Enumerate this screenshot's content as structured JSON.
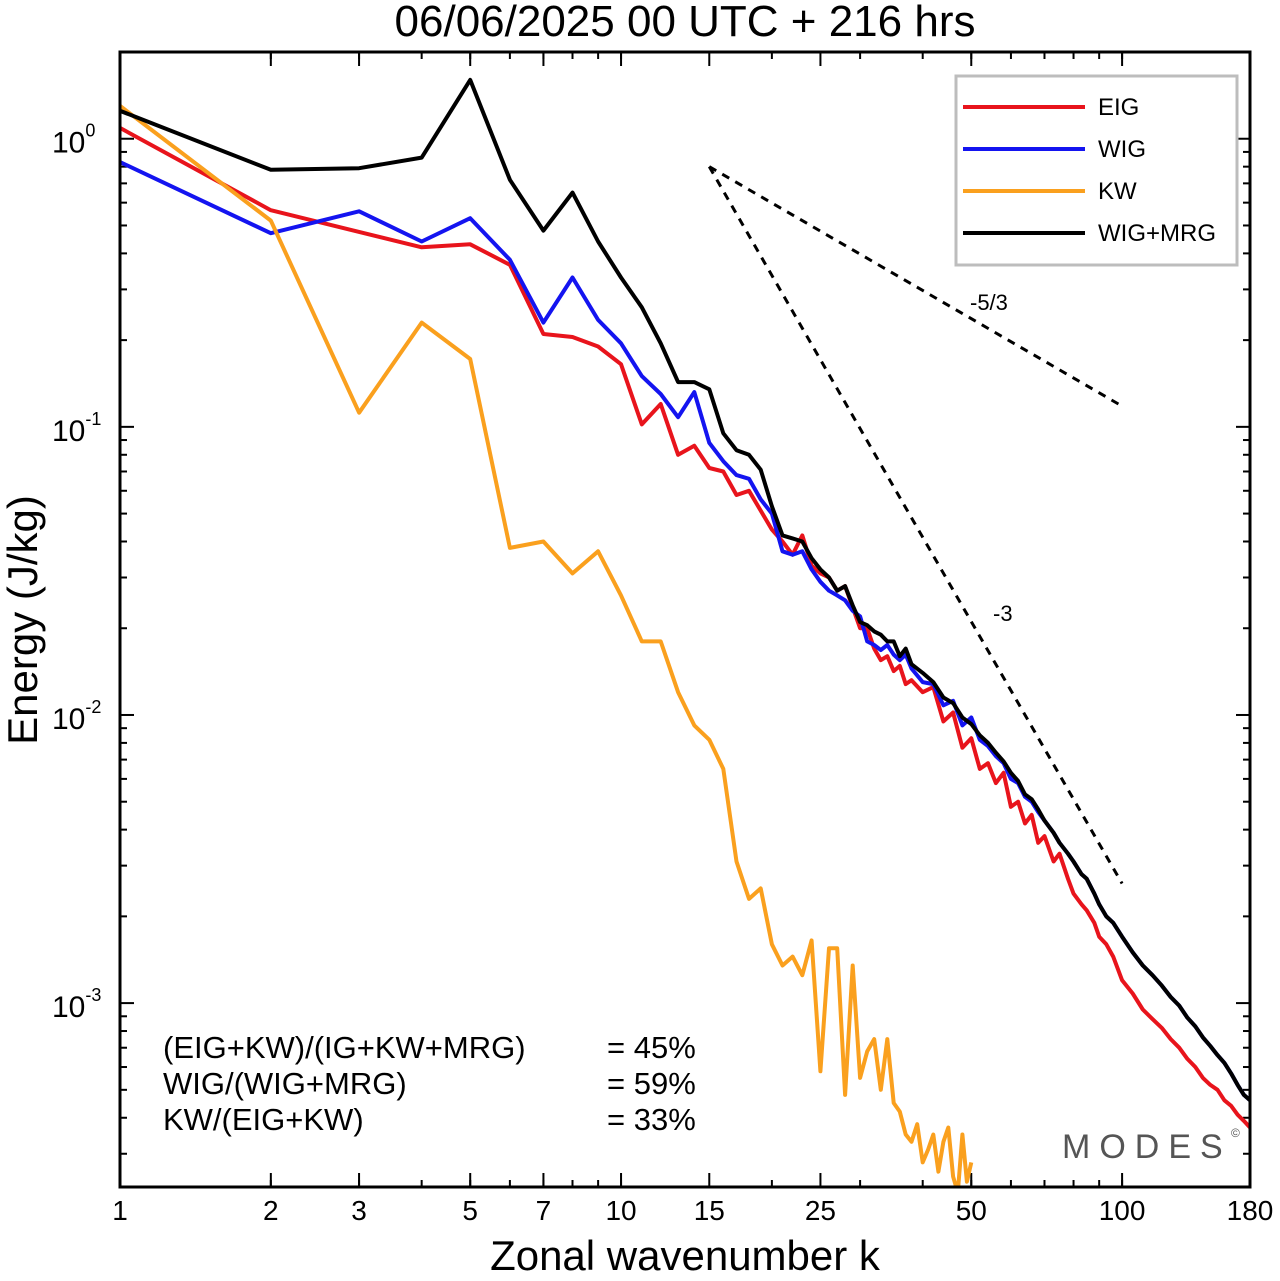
{
  "chart_data": {
    "type": "line",
    "title": "06/06/2025  00 UTC  + 216 hrs",
    "xlabel": "Zonal wavenumber k",
    "ylabel": "Energy (J/kg)",
    "xscale": "log",
    "yscale": "log",
    "xlim": [
      1,
      180
    ],
    "ylim": [
      0.00023,
      2.0
    ],
    "grid": false,
    "legend_position": "top-right",
    "x_ticks": [
      1,
      2,
      3,
      5,
      7,
      10,
      15,
      25,
      50,
      100,
      180
    ],
    "x_tick_labels": [
      "1",
      "2",
      "3",
      "5",
      "7",
      "10",
      "15",
      "25",
      "50",
      "100",
      "180"
    ],
    "y_ticks": [
      {
        "value": 1,
        "base": "10",
        "exp": "0"
      },
      {
        "value": 0.1,
        "base": "10",
        "exp": "-1"
      },
      {
        "value": 0.01,
        "base": "10",
        "exp": "-2"
      },
      {
        "value": 0.001,
        "base": "10",
        "exp": "-3"
      }
    ],
    "series": [
      {
        "name": "EIG",
        "color": "#e8141c",
        "points": [
          [
            1,
            1.09
          ],
          [
            2,
            0.565
          ],
          [
            3,
            0.475
          ],
          [
            4,
            0.42
          ],
          [
            5,
            0.43
          ],
          [
            6,
            0.365
          ],
          [
            7,
            0.21
          ],
          [
            8,
            0.205
          ],
          [
            9,
            0.19
          ],
          [
            10,
            0.165
          ],
          [
            11,
            0.102
          ],
          [
            12,
            0.12
          ],
          [
            13,
            0.08
          ],
          [
            14,
            0.086
          ],
          [
            15,
            0.072
          ],
          [
            16,
            0.07
          ],
          [
            17,
            0.058
          ],
          [
            18,
            0.06
          ],
          [
            20,
            0.044
          ],
          [
            21,
            0.04
          ],
          [
            22,
            0.036
          ],
          [
            23,
            0.042
          ],
          [
            24,
            0.033
          ],
          [
            25,
            0.031
          ],
          [
            26,
            0.03
          ],
          [
            27,
            0.027
          ],
          [
            28,
            0.028
          ],
          [
            30,
            0.02
          ],
          [
            31,
            0.02
          ],
          [
            32,
            0.017
          ],
          [
            33,
            0.0155
          ],
          [
            34,
            0.016
          ],
          [
            35,
            0.0142
          ],
          [
            36,
            0.0148
          ],
          [
            37,
            0.0128
          ],
          [
            38,
            0.0132
          ],
          [
            40,
            0.012
          ],
          [
            42,
            0.0125
          ],
          [
            44,
            0.0095
          ],
          [
            46,
            0.0102
          ],
          [
            48,
            0.0077
          ],
          [
            50,
            0.0083
          ],
          [
            52,
            0.0065
          ],
          [
            54,
            0.0068
          ],
          [
            56,
            0.0058
          ],
          [
            58,
            0.0063
          ],
          [
            60,
            0.0048
          ],
          [
            62,
            0.005
          ],
          [
            64,
            0.0042
          ],
          [
            66,
            0.0045
          ],
          [
            68,
            0.0036
          ],
          [
            70,
            0.0038
          ],
          [
            73,
            0.0031
          ],
          [
            75,
            0.0033
          ],
          [
            78,
            0.0027
          ],
          [
            80,
            0.0024
          ],
          [
            83,
            0.0022
          ],
          [
            85,
            0.0021
          ],
          [
            88,
            0.0019
          ],
          [
            90,
            0.0017
          ],
          [
            93,
            0.0016
          ],
          [
            96,
            0.00145
          ],
          [
            100,
            0.0012
          ],
          [
            105,
            0.00108
          ],
          [
            110,
            0.00095
          ],
          [
            115,
            0.00088
          ],
          [
            120,
            0.00082
          ],
          [
            125,
            0.00075
          ],
          [
            130,
            0.0007
          ],
          [
            135,
            0.00064
          ],
          [
            140,
            0.0006
          ],
          [
            145,
            0.00055
          ],
          [
            150,
            0.00052
          ],
          [
            155,
            0.0005
          ],
          [
            160,
            0.00046
          ],
          [
            165,
            0.00044
          ],
          [
            170,
            0.00041
          ],
          [
            175,
            0.00039
          ],
          [
            180,
            0.00037
          ]
        ]
      },
      {
        "name": "WIG",
        "color": "#1414f0",
        "points": [
          [
            1,
            0.83
          ],
          [
            2,
            0.47
          ],
          [
            3,
            0.56
          ],
          [
            4,
            0.44
          ],
          [
            5,
            0.53
          ],
          [
            6,
            0.38
          ],
          [
            7,
            0.23
          ],
          [
            8,
            0.33
          ],
          [
            9,
            0.235
          ],
          [
            10,
            0.195
          ],
          [
            11,
            0.15
          ],
          [
            12,
            0.13
          ],
          [
            13,
            0.108
          ],
          [
            14,
            0.132
          ],
          [
            15,
            0.088
          ],
          [
            16,
            0.076
          ],
          [
            17,
            0.068
          ],
          [
            18,
            0.066
          ],
          [
            19,
            0.056
          ],
          [
            20,
            0.05
          ],
          [
            21,
            0.037
          ],
          [
            22,
            0.036
          ],
          [
            23,
            0.037
          ],
          [
            24,
            0.032
          ],
          [
            25,
            0.029
          ],
          [
            26,
            0.027
          ],
          [
            27,
            0.026
          ],
          [
            28,
            0.025
          ],
          [
            29,
            0.023
          ],
          [
            30,
            0.022
          ],
          [
            31,
            0.018
          ],
          [
            32,
            0.0175
          ],
          [
            33,
            0.0168
          ],
          [
            34,
            0.0175
          ],
          [
            35,
            0.0162
          ],
          [
            36,
            0.0155
          ],
          [
            37,
            0.0162
          ],
          [
            38,
            0.0145
          ],
          [
            40,
            0.013
          ],
          [
            42,
            0.0128
          ],
          [
            44,
            0.0108
          ],
          [
            46,
            0.0112
          ],
          [
            48,
            0.0092
          ],
          [
            50,
            0.0098
          ],
          [
            52,
            0.0082
          ],
          [
            54,
            0.0078
          ],
          [
            56,
            0.0072
          ],
          [
            58,
            0.0068
          ],
          [
            60,
            0.006
          ],
          [
            62,
            0.0058
          ],
          [
            64,
            0.0052
          ],
          [
            66,
            0.005
          ],
          [
            68,
            0.0046
          ],
          [
            70,
            0.0043
          ],
          [
            73,
            0.0039
          ],
          [
            75,
            0.0036
          ],
          [
            78,
            0.0033
          ],
          [
            80,
            0.0031
          ],
          [
            83,
            0.0028
          ],
          [
            85,
            0.0027
          ],
          [
            88,
            0.0024
          ],
          [
            90,
            0.0022
          ],
          [
            93,
            0.002
          ],
          [
            96,
            0.0019
          ],
          [
            100,
            0.0017
          ],
          [
            105,
            0.0015
          ],
          [
            110,
            0.00135
          ],
          [
            115,
            0.00125
          ],
          [
            120,
            0.00115
          ],
          [
            125,
            0.00105
          ],
          [
            130,
            0.00098
          ],
          [
            135,
            0.00089
          ],
          [
            140,
            0.00083
          ],
          [
            145,
            0.00076
          ],
          [
            150,
            0.00071
          ],
          [
            155,
            0.00066
          ],
          [
            160,
            0.00062
          ],
          [
            165,
            0.00057
          ],
          [
            170,
            0.00052
          ],
          [
            175,
            0.00048
          ],
          [
            180,
            0.00046
          ]
        ]
      },
      {
        "name": "KW",
        "color": "#faa01e",
        "points": [
          [
            1,
            1.3
          ],
          [
            2,
            0.52
          ],
          [
            3,
            0.112
          ],
          [
            4,
            0.23
          ],
          [
            5,
            0.172
          ],
          [
            6,
            0.038
          ],
          [
            7,
            0.04
          ],
          [
            8,
            0.031
          ],
          [
            9,
            0.037
          ],
          [
            10,
            0.026
          ],
          [
            11,
            0.018
          ],
          [
            12,
            0.018
          ],
          [
            13,
            0.012
          ],
          [
            14,
            0.0092
          ],
          [
            15,
            0.0082
          ],
          [
            16,
            0.0065
          ],
          [
            17,
            0.0031
          ],
          [
            18,
            0.0023
          ],
          [
            19,
            0.0025
          ],
          [
            20,
            0.0016
          ],
          [
            21,
            0.00135
          ],
          [
            22,
            0.00145
          ],
          [
            23,
            0.00125
          ],
          [
            24,
            0.00165
          ],
          [
            25,
            0.00058
          ],
          [
            26,
            0.00155
          ],
          [
            27,
            0.00155
          ],
          [
            28,
            0.00048
          ],
          [
            29,
            0.00135
          ],
          [
            30,
            0.00055
          ],
          [
            31,
            0.00068
          ],
          [
            32,
            0.00075
          ],
          [
            33,
            0.0005
          ],
          [
            34,
            0.00075
          ],
          [
            35,
            0.00045
          ],
          [
            36,
            0.00042
          ],
          [
            37,
            0.00035
          ],
          [
            38,
            0.00033
          ],
          [
            39,
            0.00038
          ],
          [
            40,
            0.00028
          ],
          [
            41,
            0.00031
          ],
          [
            42,
            0.00035
          ],
          [
            43,
            0.00026
          ],
          [
            44,
            0.00033
          ],
          [
            45,
            0.00037
          ],
          [
            46,
            0.00025
          ],
          [
            47,
            0.00022
          ],
          [
            48,
            0.00035
          ],
          [
            49,
            0.00024
          ],
          [
            50,
            0.00028
          ]
        ]
      },
      {
        "name": "WIG+MRG",
        "color": "#000000",
        "points": [
          [
            1,
            1.25
          ],
          [
            2,
            0.78
          ],
          [
            3,
            0.79
          ],
          [
            4,
            0.86
          ],
          [
            5,
            1.6
          ],
          [
            6,
            0.72
          ],
          [
            7,
            0.48
          ],
          [
            8,
            0.65
          ],
          [
            9,
            0.44
          ],
          [
            10,
            0.33
          ],
          [
            11,
            0.26
          ],
          [
            12,
            0.195
          ],
          [
            13,
            0.143
          ],
          [
            14,
            0.143
          ],
          [
            15,
            0.135
          ],
          [
            16,
            0.095
          ],
          [
            17,
            0.083
          ],
          [
            18,
            0.08
          ],
          [
            19,
            0.071
          ],
          [
            20,
            0.053
          ],
          [
            21,
            0.042
          ],
          [
            22,
            0.041
          ],
          [
            23,
            0.04
          ],
          [
            24,
            0.035
          ],
          [
            25,
            0.032
          ],
          [
            26,
            0.03
          ],
          [
            27,
            0.027
          ],
          [
            28,
            0.028
          ],
          [
            29,
            0.024
          ],
          [
            30,
            0.021
          ],
          [
            31,
            0.0205
          ],
          [
            32,
            0.0195
          ],
          [
            33,
            0.019
          ],
          [
            34,
            0.018
          ],
          [
            35,
            0.018
          ],
          [
            36,
            0.016
          ],
          [
            37,
            0.017
          ],
          [
            38,
            0.015
          ],
          [
            40,
            0.014
          ],
          [
            42,
            0.013
          ],
          [
            44,
            0.0115
          ],
          [
            46,
            0.011
          ],
          [
            48,
            0.0098
          ],
          [
            50,
            0.0093
          ],
          [
            52,
            0.0085
          ],
          [
            54,
            0.008
          ],
          [
            56,
            0.0074
          ],
          [
            58,
            0.0069
          ],
          [
            60,
            0.0063
          ],
          [
            62,
            0.0059
          ],
          [
            64,
            0.0053
          ],
          [
            66,
            0.0051
          ],
          [
            68,
            0.0047
          ],
          [
            70,
            0.0043
          ],
          [
            73,
            0.0039
          ],
          [
            75,
            0.0036
          ],
          [
            78,
            0.0033
          ],
          [
            80,
            0.0031
          ],
          [
            83,
            0.0028
          ],
          [
            85,
            0.0027
          ],
          [
            88,
            0.0024
          ],
          [
            90,
            0.0022
          ],
          [
            93,
            0.002
          ],
          [
            96,
            0.0019
          ],
          [
            100,
            0.0017
          ],
          [
            105,
            0.0015
          ],
          [
            110,
            0.00135
          ],
          [
            115,
            0.00125
          ],
          [
            120,
            0.00115
          ],
          [
            125,
            0.00105
          ],
          [
            130,
            0.00098
          ],
          [
            135,
            0.00089
          ],
          [
            140,
            0.00083
          ],
          [
            145,
            0.00076
          ],
          [
            150,
            0.00071
          ],
          [
            155,
            0.00066
          ],
          [
            160,
            0.00062
          ],
          [
            165,
            0.00057
          ],
          [
            170,
            0.00052
          ],
          [
            175,
            0.00048
          ],
          [
            180,
            0.00046
          ]
        ]
      }
    ],
    "reference_slopes": [
      {
        "label": "-5/3",
        "x": [
          15,
          100
        ],
        "y": [
          0.8,
          0.118
        ]
      },
      {
        "label": "-3",
        "x": [
          15,
          100
        ],
        "y": [
          0.8,
          0.0026
        ]
      }
    ],
    "annotations": [
      {
        "name": "(EIG+KW)/(IG+KW+MRG)",
        "value": "= 45%"
      },
      {
        "name": "WIG/(WIG+MRG)",
        "value": "= 59%"
      },
      {
        "name": "KW/(EIG+KW)",
        "value": "= 33%"
      }
    ],
    "watermark": "MODES",
    "watermark_mark": "©"
  }
}
